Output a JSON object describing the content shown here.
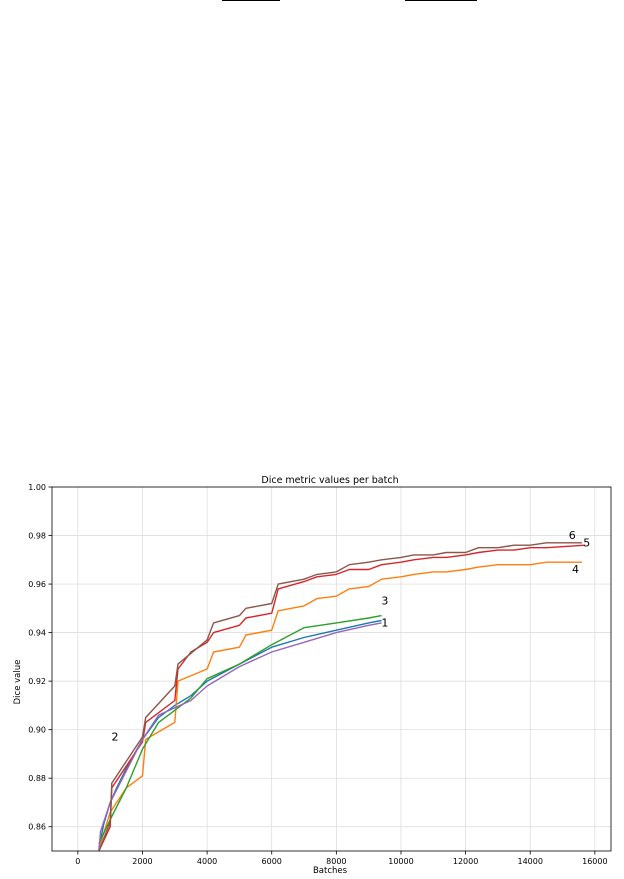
{
  "chart_data": {
    "type": "line",
    "title": "Dice metric values per batch",
    "xlabel": "Batches",
    "ylabel": "Dice value",
    "xlim": [
      -800,
      16500
    ],
    "ylim": [
      0.85,
      1.0
    ],
    "x_ticks": [
      0,
      2000,
      4000,
      6000,
      8000,
      10000,
      12000,
      14000,
      16000
    ],
    "x_tick_labels": [
      "0",
      "2000",
      "4000",
      "6000",
      "8000",
      "10000",
      "12000",
      "14000",
      "16000"
    ],
    "y_ticks": [
      0.86,
      0.88,
      0.9,
      0.92,
      0.94,
      0.96,
      0.98,
      1.0
    ],
    "y_tick_labels": [
      "0.86",
      "0.88",
      "0.90",
      "0.92",
      "0.94",
      "0.96",
      "0.98",
      "1.00"
    ],
    "grid": true,
    "series": [
      {
        "color": "#1f77b4",
        "x": [
          650,
          800,
          1000,
          1200,
          1500,
          2000,
          2500,
          3000,
          3500,
          4000,
          5000,
          6000,
          7000,
          8000,
          9000,
          9400
        ],
        "y": [
          0.851,
          0.861,
          0.87,
          0.876,
          0.884,
          0.896,
          0.905,
          0.91,
          0.914,
          0.92,
          0.927,
          0.934,
          0.938,
          0.941,
          0.944,
          0.945
        ]
      },
      {
        "color": "#ff7f0e",
        "x": [
          650,
          1000,
          1500,
          2000,
          2100,
          3000,
          3100,
          4000,
          4200,
          5000,
          5200,
          6000,
          6200,
          7000,
          7400,
          8000,
          8400,
          9000,
          9400,
          10000,
          10400,
          11000,
          11400,
          12000,
          12400,
          13000,
          13500,
          14000,
          14500,
          15600
        ],
        "y": [
          0.851,
          0.866,
          0.876,
          0.881,
          0.896,
          0.903,
          0.92,
          0.925,
          0.932,
          0.934,
          0.939,
          0.941,
          0.949,
          0.951,
          0.954,
          0.955,
          0.958,
          0.959,
          0.962,
          0.963,
          0.964,
          0.965,
          0.965,
          0.966,
          0.967,
          0.968,
          0.968,
          0.968,
          0.969,
          0.969
        ]
      },
      {
        "color": "#2ca02c",
        "x": [
          650,
          1000,
          1500,
          2000,
          2500,
          3000,
          3500,
          4000,
          5000,
          6000,
          7000,
          8000,
          9000,
          9400
        ],
        "y": [
          0.853,
          0.863,
          0.876,
          0.892,
          0.903,
          0.908,
          0.913,
          0.921,
          0.927,
          0.935,
          0.942,
          0.944,
          0.946,
          0.947
        ]
      },
      {
        "color": "#d62728",
        "x": [
          650,
          1000,
          1050,
          2000,
          2100,
          3000,
          3100,
          3500,
          4000,
          4200,
          5000,
          5200,
          6000,
          6200,
          7000,
          7400,
          8000,
          8400,
          9000,
          9400,
          10000,
          10400,
          11000,
          11400,
          12000,
          12400,
          13000,
          13500,
          14000,
          14500,
          15700
        ],
        "y": [
          0.85,
          0.86,
          0.876,
          0.895,
          0.903,
          0.912,
          0.925,
          0.932,
          0.936,
          0.94,
          0.943,
          0.946,
          0.948,
          0.958,
          0.961,
          0.963,
          0.964,
          0.966,
          0.966,
          0.968,
          0.969,
          0.97,
          0.971,
          0.971,
          0.972,
          0.973,
          0.974,
          0.974,
          0.975,
          0.975,
          0.976
        ]
      },
      {
        "color": "#9467bd",
        "x": [
          650,
          700,
          1000,
          1500,
          2000,
          2500,
          3000,
          3500,
          4000,
          5000,
          6000,
          7000,
          8000,
          9000,
          9400
        ],
        "y": [
          0.85,
          0.858,
          0.87,
          0.883,
          0.896,
          0.906,
          0.909,
          0.912,
          0.918,
          0.926,
          0.932,
          0.936,
          0.94,
          0.943,
          0.944
        ]
      },
      {
        "color": "#8c564b",
        "x": [
          650,
          1000,
          1050,
          2000,
          2100,
          3000,
          3100,
          4000,
          4200,
          5000,
          5200,
          6000,
          6200,
          7000,
          7400,
          8000,
          8400,
          9000,
          9400,
          10000,
          10400,
          11000,
          11400,
          12000,
          12400,
          13000,
          13500,
          14000,
          14500,
          15600
        ],
        "y": [
          0.85,
          0.862,
          0.878,
          0.897,
          0.905,
          0.918,
          0.927,
          0.937,
          0.944,
          0.947,
          0.95,
          0.952,
          0.96,
          0.962,
          0.964,
          0.965,
          0.968,
          0.969,
          0.97,
          0.971,
          0.972,
          0.972,
          0.973,
          0.973,
          0.975,
          0.975,
          0.976,
          0.976,
          0.977,
          0.977
        ]
      }
    ],
    "annotations": [
      {
        "text": "1",
        "x": 9500,
        "y": 0.9425
      },
      {
        "text": "2",
        "x": 1150,
        "y": 0.8955
      },
      {
        "text": "3",
        "x": 9500,
        "y": 0.9515
      },
      {
        "text": "4",
        "x": 15400,
        "y": 0.9645
      },
      {
        "text": "5",
        "x": 15750,
        "y": 0.9755
      },
      {
        "text": "6",
        "x": 15300,
        "y": 0.9785
      }
    ]
  }
}
